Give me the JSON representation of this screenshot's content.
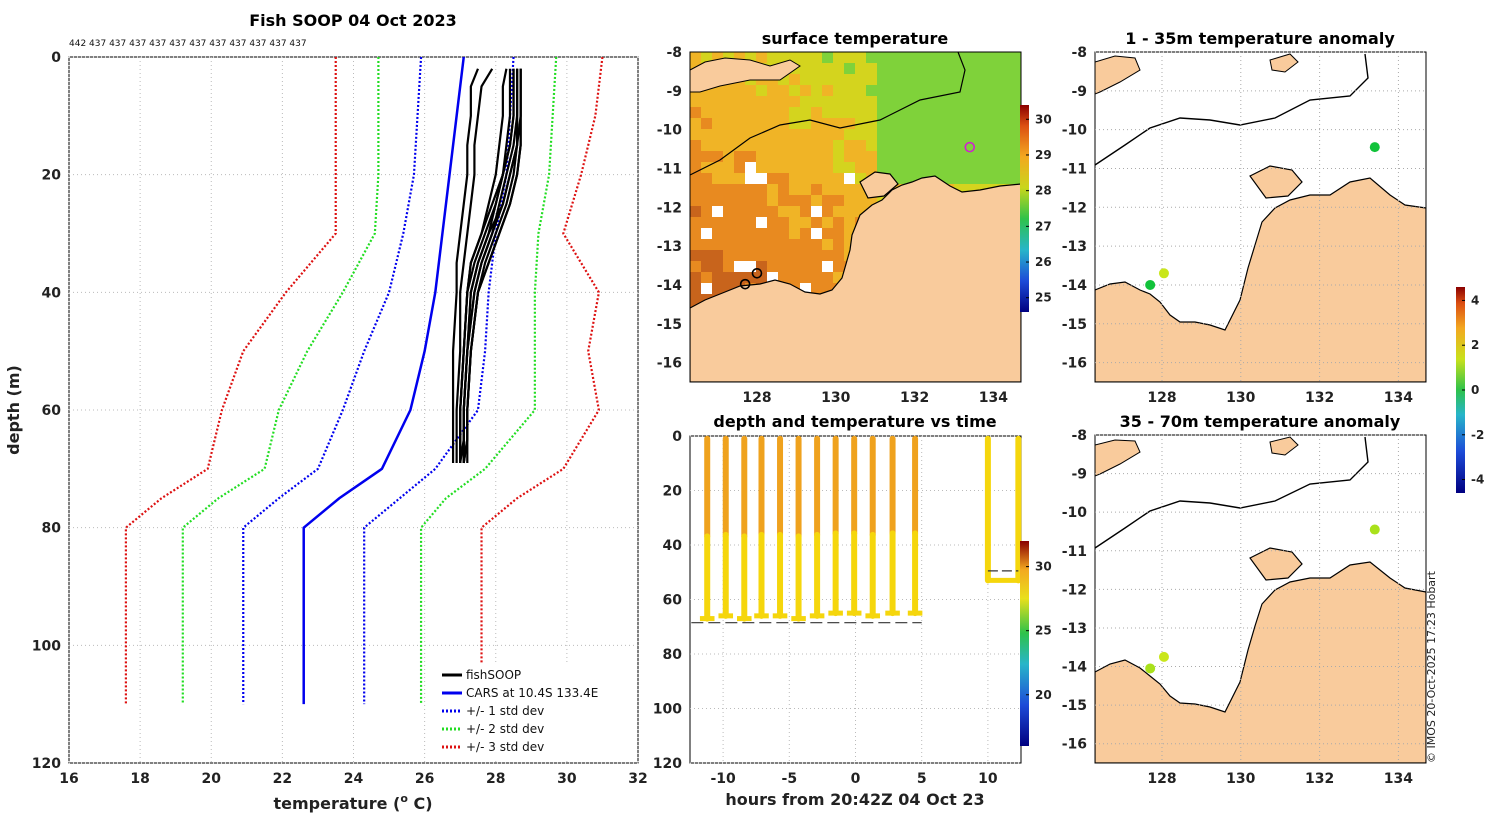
{
  "figure_title": "Fish SOOP 04 Oct 2023",
  "credit": "© IMOS 20-Oct-2025 17:23 Hobart",
  "colors": {
    "fishsoop": "#000000",
    "cars": "#0000ee",
    "std1": "#0000ee",
    "std2": "#22dd22",
    "std3": "#dd1111",
    "land": "#f9cb9c",
    "coast": "#000000"
  },
  "chart_data": [
    {
      "id": "profile",
      "type": "line",
      "xlabel": "temperature (o C)",
      "xlabel_main": "temperature (",
      "xlabel_sup": "o",
      "xlabel_tail": " C)",
      "ylabel": "depth (m)",
      "xlim": [
        16,
        32
      ],
      "ylim": [
        120,
        0
      ],
      "xticks": [
        "16",
        "18",
        "20",
        "22",
        "24",
        "26",
        "28",
        "30",
        "32"
      ],
      "yticks": [
        "0",
        "20",
        "40",
        "60",
        "80",
        "100",
        "120"
      ],
      "grid": true,
      "top_counts": "442 437 437 437 437 437 437 437 437 437 437 437",
      "legend_position": "bottom-right",
      "legend": [
        "fishSOOP",
        "CARS at 10.4S 133.4E",
        "+/- 1 std dev",
        "+/- 2 std dev",
        "+/- 3 std dev"
      ],
      "depth": [
        0,
        10,
        20,
        30,
        40,
        50,
        60,
        70,
        75,
        80,
        110
      ],
      "series": [
        {
          "name": "CARS",
          "values": [
            27.1,
            26.9,
            26.7,
            26.5,
            26.3,
            26.0,
            25.6,
            24.8,
            23.6,
            22.6,
            22.6
          ]
        },
        {
          "name": "+1 std",
          "values": [
            28.5,
            28.4,
            28.3,
            28.0,
            27.8,
            27.7,
            27.5,
            26.3,
            25.3,
            24.3,
            24.3
          ]
        },
        {
          "name": "-1 std",
          "values": [
            25.9,
            25.8,
            25.7,
            25.4,
            25.0,
            24.3,
            23.7,
            23.0,
            21.9,
            20.9,
            20.9
          ]
        },
        {
          "name": "+2 std",
          "values": [
            29.7,
            29.6,
            29.5,
            29.2,
            29.1,
            29.1,
            29.1,
            27.7,
            26.6,
            25.9,
            25.9
          ]
        },
        {
          "name": "-2 std",
          "values": [
            24.7,
            24.7,
            24.7,
            24.6,
            23.7,
            22.7,
            21.9,
            21.5,
            20.2,
            19.2,
            19.2
          ]
        },
        {
          "name": "+3 std",
          "values": [
            31.0,
            30.8,
            30.4,
            29.9,
            30.9,
            30.6,
            30.9,
            29.9,
            28.6,
            27.6,
            27.6
          ]
        },
        {
          "name": "-3 std",
          "values": [
            23.5,
            23.5,
            23.5,
            23.5,
            22.1,
            20.9,
            20.3,
            19.9,
            18.6,
            17.6,
            17.6
          ]
        }
      ],
      "fishsoop_depth": [
        2,
        5,
        10,
        15,
        20,
        25,
        30,
        35,
        40,
        50,
        60,
        65,
        69
      ],
      "fishsoop_profiles": [
        [
          27.5,
          27.3,
          27.3,
          27.2,
          27.2,
          27.1,
          27.0,
          26.9,
          26.9,
          26.8,
          26.8,
          26.8,
          26.8
        ],
        [
          27.9,
          27.6,
          27.5,
          27.4,
          27.4,
          27.3,
          27.2,
          27.1,
          27.0,
          27.0,
          26.9,
          26.9,
          26.9
        ],
        [
          28.3,
          28.2,
          28.2,
          28.1,
          28.0,
          27.8,
          27.6,
          27.3,
          27.2,
          27.1,
          27.0,
          27.0,
          27.0
        ],
        [
          28.5,
          28.5,
          28.5,
          28.4,
          28.2,
          28.0,
          27.8,
          27.5,
          27.3,
          27.2,
          27.1,
          27.1,
          27.0
        ],
        [
          28.6,
          28.6,
          28.6,
          28.6,
          28.4,
          28.2,
          27.9,
          27.6,
          27.4,
          27.2,
          27.1,
          27.1,
          27.1
        ],
        [
          28.7,
          28.7,
          28.7,
          28.7,
          28.6,
          28.4,
          28.1,
          27.8,
          27.5,
          27.3,
          27.2,
          27.2,
          27.1
        ],
        [
          28.4,
          28.4,
          28.4,
          28.3,
          28.2,
          28.0,
          27.7,
          27.4,
          27.2,
          27.1,
          27.0,
          27.0,
          27.0
        ],
        [
          28.6,
          28.6,
          28.6,
          28.5,
          28.3,
          28.1,
          27.9,
          27.6,
          27.4,
          27.2,
          27.1,
          27.1,
          27.1
        ],
        [
          28.7,
          28.7,
          28.7,
          28.6,
          28.5,
          28.3,
          28.0,
          27.7,
          27.5,
          27.3,
          27.2,
          27.2,
          27.1
        ],
        [
          28.5,
          28.5,
          28.5,
          28.4,
          28.2,
          27.9,
          27.6,
          27.3,
          27.2,
          27.1,
          27.0,
          27.0,
          27.0
        ],
        [
          28.6,
          28.6,
          28.6,
          28.6,
          28.4,
          28.2,
          27.8,
          27.5,
          27.3,
          27.2,
          27.1,
          27.1,
          27.1
        ],
        [
          28.7,
          28.7,
          28.7,
          28.7,
          28.6,
          28.4,
          28.1,
          27.8,
          27.5,
          27.3,
          27.2,
          27.2,
          27.2
        ]
      ]
    },
    {
      "id": "sst",
      "type": "heatmap",
      "title": "surface temperature",
      "xlim": [
        126.3,
        134.7
      ],
      "ylim": [
        -16.5,
        -8
      ],
      "xticks": [
        "128",
        "130",
        "132",
        "134"
      ],
      "yticks": [
        "-8",
        "-9",
        "-10",
        "-11",
        "-12",
        "-13",
        "-14",
        "-15",
        "-16"
      ],
      "colorbar_ticks": [
        "25",
        "26",
        "27",
        "28",
        "29",
        "30"
      ],
      "colorbar_range": [
        24.6,
        30.4
      ],
      "markers": [
        {
          "lon": 133.4,
          "lat": -10.45,
          "label": "magenta"
        },
        {
          "lon": 128.0,
          "lat": -13.7,
          "label": "black"
        },
        {
          "lon": 127.7,
          "lat": -13.98,
          "label": "black"
        }
      ]
    },
    {
      "id": "depth_time",
      "type": "scatter",
      "title": "depth and temperature vs time",
      "xlabel": "hours from 20:42Z 04 Oct 23",
      "xlim": [
        -12.5,
        12.5
      ],
      "ylim": [
        120,
        0
      ],
      "xticks": [
        "-10",
        "-5",
        "0",
        "5",
        "10"
      ],
      "yticks": [
        "0",
        "20",
        "40",
        "60",
        "80",
        "100",
        "120"
      ],
      "colorbar_ticks": [
        "20",
        "25",
        "30"
      ],
      "colorbar_range": [
        16,
        32
      ],
      "cast_hours": [
        -11.2,
        -9.8,
        -8.4,
        -7.1,
        -5.7,
        -4.3,
        -2.9,
        -1.5,
        -0.1,
        1.3,
        2.8,
        4.5
      ],
      "bottom_depths": [
        67,
        66,
        67,
        66,
        66,
        67,
        66,
        65,
        65,
        66,
        65,
        65
      ],
      "short_segment": {
        "start_hour": 10.0,
        "end_hour": 12.3,
        "bottom_depth": 53
      }
    },
    {
      "id": "anom_shallow",
      "type": "scatter",
      "title": "1 - 35m temperature anomaly",
      "xlim": [
        126.3,
        134.7
      ],
      "ylim": [
        -16.5,
        -8
      ],
      "xticks": [
        "128",
        "130",
        "132",
        "134"
      ],
      "yticks": [
        "-8",
        "-9",
        "-10",
        "-11",
        "-12",
        "-13",
        "-14",
        "-15",
        "-16"
      ],
      "colorbar_ticks": [
        "4",
        "2",
        "0",
        "-2",
        "-4"
      ],
      "colorbar_range": [
        -4.6,
        4.6
      ],
      "points": [
        {
          "lon": 133.4,
          "lat": -10.45,
          "anom": 0.2
        },
        {
          "lon": 128.05,
          "lat": -13.7,
          "anom": 1.8
        },
        {
          "lon": 127.7,
          "lat": -14.0,
          "anom": 0.4
        }
      ]
    },
    {
      "id": "anom_deep",
      "type": "scatter",
      "title": "35 - 70m temperature anomaly",
      "xlim": [
        126.3,
        134.7
      ],
      "ylim": [
        -16.5,
        -8
      ],
      "xticks": [
        "128",
        "130",
        "132",
        "134"
      ],
      "yticks": [
        "-8",
        "-9",
        "-10",
        "-11",
        "-12",
        "-13",
        "-14",
        "-15",
        "-16"
      ],
      "points": [
        {
          "lon": 133.4,
          "lat": -10.45,
          "anom": 1.6
        },
        {
          "lon": 128.05,
          "lat": -13.75,
          "anom": 1.7
        },
        {
          "lon": 127.7,
          "lat": -14.05,
          "anom": 1.6
        }
      ]
    }
  ]
}
